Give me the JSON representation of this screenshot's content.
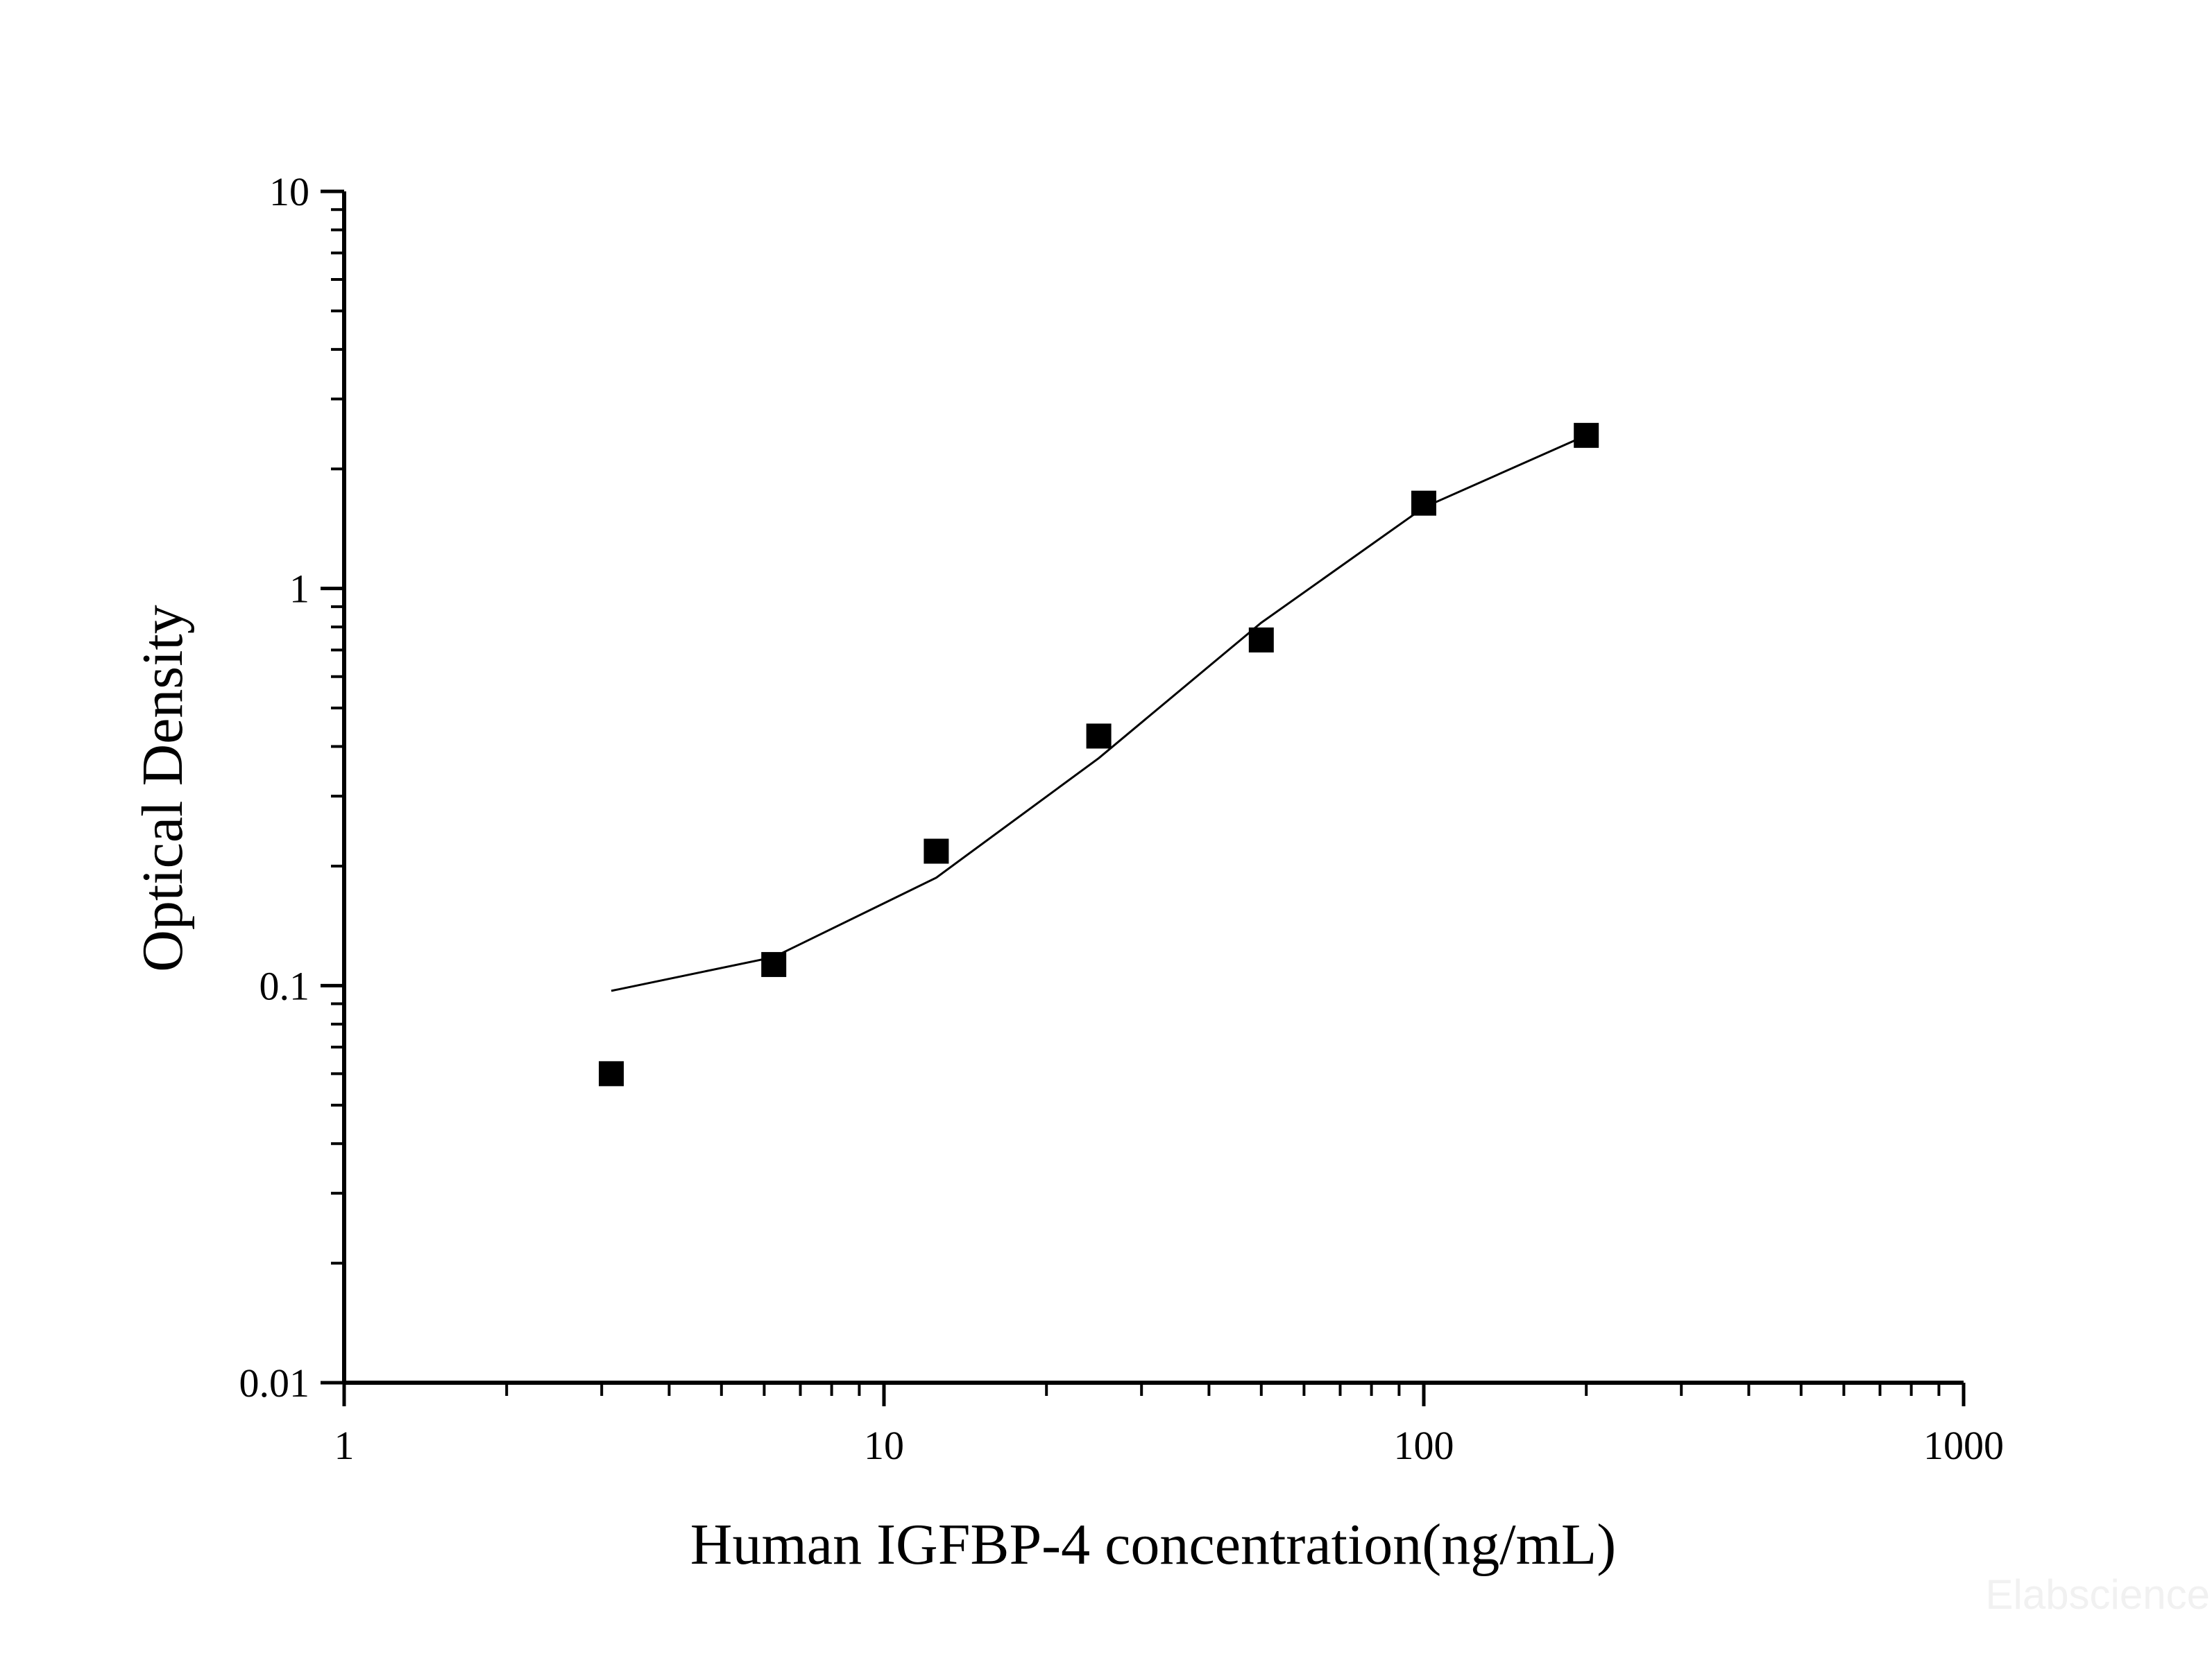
{
  "chart_data": {
    "type": "scatter",
    "x_scale": "log",
    "y_scale": "log",
    "xlim": [
      1,
      1000
    ],
    "ylim": [
      0.01,
      10
    ],
    "xlabel": "Human IGFBP-4 concentration(ng/mL)",
    "ylabel": "Optical Density",
    "x_ticks": [
      {
        "value": 1,
        "label": "1"
      },
      {
        "value": 10,
        "label": "10"
      },
      {
        "value": 100,
        "label": "100"
      },
      {
        "value": 1000,
        "label": "1000"
      }
    ],
    "y_ticks": [
      {
        "value": 0.01,
        "label": "0.01"
      },
      {
        "value": 0.1,
        "label": "0.1"
      },
      {
        "value": 1,
        "label": "1"
      },
      {
        "value": 10,
        "label": "10"
      }
    ],
    "grid": false,
    "legend": "none",
    "series": [
      {
        "kind": "points",
        "marker": "square",
        "color": "#000000",
        "x": [
          3.125,
          6.25,
          12.5,
          25,
          50,
          100,
          200
        ],
        "y": [
          0.06,
          0.113,
          0.218,
          0.425,
          0.742,
          1.64,
          2.43
        ]
      },
      {
        "kind": "fit-line",
        "color": "#000000",
        "x": [
          3.125,
          6.25,
          12.5,
          25,
          50,
          100,
          200
        ],
        "y": [
          0.097,
          0.118,
          0.187,
          0.374,
          0.82,
          1.6,
          2.43
        ]
      }
    ]
  },
  "watermark": "Elabscience"
}
